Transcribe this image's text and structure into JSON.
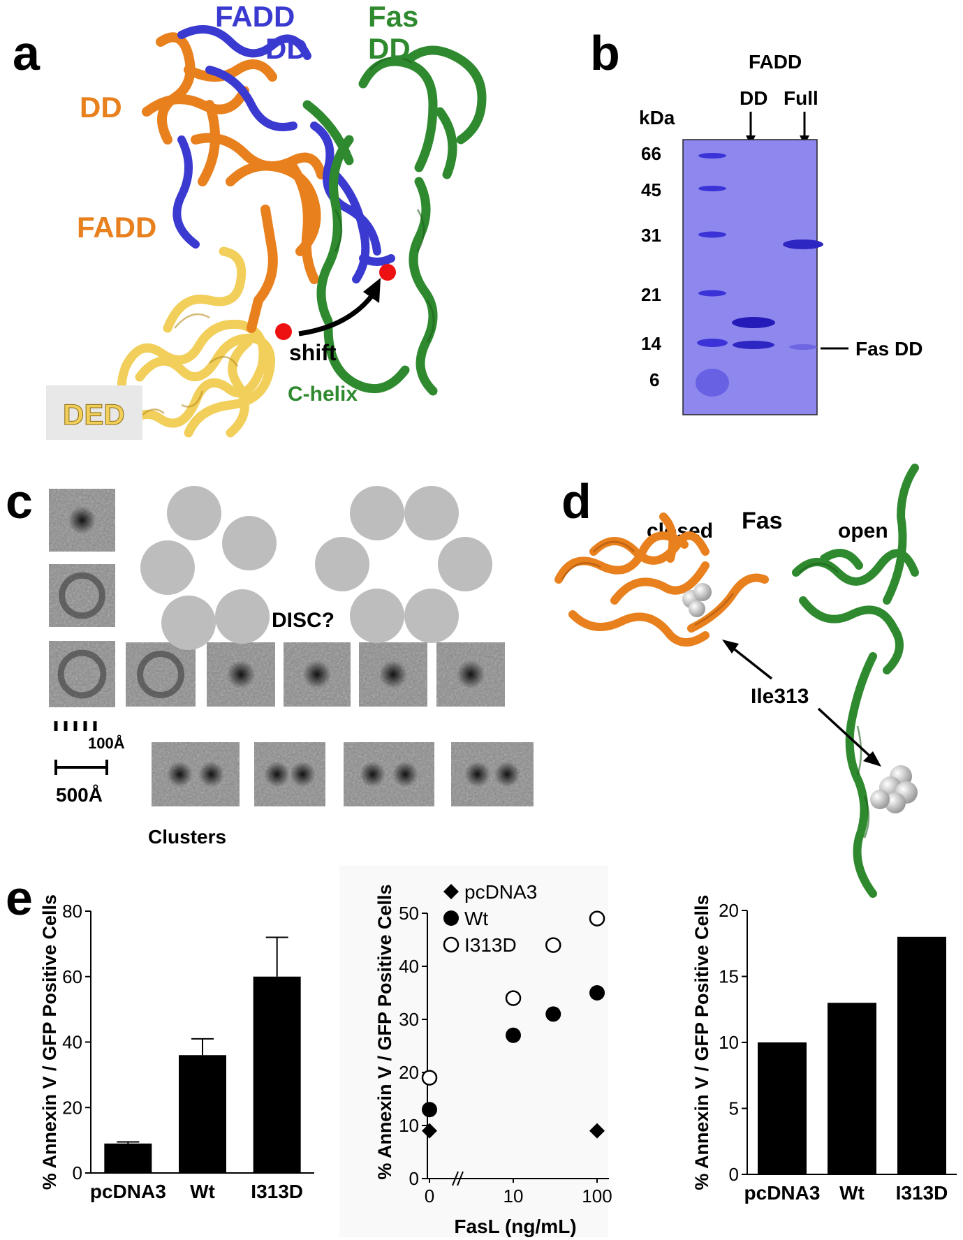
{
  "panels": {
    "a": {
      "letter": "a",
      "labels": {
        "fadd_dd_1": "FADD",
        "fadd_dd_2": "DD",
        "fas_dd_1": "Fas",
        "fas_dd_2": "DD",
        "dd": "DD",
        "fadd": "FADD",
        "shift": "shift",
        "c_helix": "C-helix",
        "ded": "DED"
      },
      "colors": {
        "orange": "#E8801E",
        "blue": "#3A3AD0",
        "green": "#2F8A2F",
        "yellow": "#F1CF5A",
        "red": "#EE1111"
      }
    },
    "b": {
      "letter": "b",
      "labels": {
        "fadd": "FADD",
        "lane_dd": "DD",
        "lane_full": "Full",
        "kda": "kDa",
        "fas_dd": "Fas DD"
      },
      "markers": [
        "66",
        "45",
        "31",
        "21",
        "14",
        "6"
      ],
      "gel_color": "#8E88EE"
    },
    "c": {
      "letter": "c",
      "labels": {
        "disc": "DISC?",
        "scale_small": "100Å",
        "scale_large": "500Å",
        "clusters": "Clusters"
      }
    },
    "d": {
      "letter": "d",
      "labels": {
        "closed": "closed",
        "fas": "Fas",
        "open": "open",
        "residue": "Ile313"
      }
    },
    "e": {
      "letter": "e"
    }
  },
  "chart_data": [
    {
      "type": "bar",
      "ylabel": "% Annexin V / GFP Positive Cells",
      "categories": [
        "pcDNA3",
        "Wt",
        "I313D"
      ],
      "values": [
        9,
        36,
        60
      ],
      "errors": [
        0.5,
        5,
        12
      ],
      "ylim": [
        0,
        80
      ],
      "yticks": [
        "0",
        "20",
        "40",
        "60",
        "80"
      ],
      "grid": false
    },
    {
      "type": "scatter",
      "ylabel": "% Annexin V / GFP Positive Cells",
      "xlabel": "FasL (ng/mL)",
      "xticks": [
        "0",
        "10",
        "100"
      ],
      "yticks": [
        "0",
        "10",
        "20",
        "30",
        "40",
        "50"
      ],
      "ylim": [
        0,
        50
      ],
      "legend_position": "top-left",
      "series": [
        {
          "name": "pcDNA3",
          "marker": "diamond",
          "x": [
            0,
            100
          ],
          "y": [
            9,
            9
          ]
        },
        {
          "name": "Wt",
          "marker": "filled-circle",
          "x": [
            0,
            10,
            30,
            100
          ],
          "y": [
            13,
            27,
            31,
            35
          ]
        },
        {
          "name": "I313D",
          "marker": "open-circle",
          "x": [
            0,
            10,
            30,
            100
          ],
          "y": [
            19,
            34,
            44,
            49
          ]
        }
      ],
      "axis_break": true
    },
    {
      "type": "bar",
      "ylabel": "% Annexin V / GFP Positive Cells",
      "categories": [
        "pcDNA3",
        "Wt",
        "I313D"
      ],
      "values": [
        10,
        13,
        18
      ],
      "ylim": [
        0,
        20
      ],
      "yticks": [
        "0",
        "5",
        "10",
        "15",
        "20"
      ],
      "grid": false
    }
  ]
}
